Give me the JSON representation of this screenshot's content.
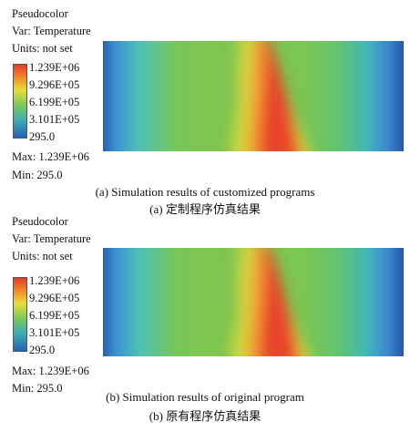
{
  "panels": [
    {
      "legend": {
        "plot_type": "Pseudocolor",
        "variable": "Var: Temperature",
        "units": "Units: not set",
        "ticks": [
          "1.239E+06",
          "9.296E+05",
          "6.199E+05",
          "3.101E+05",
          "295.0"
        ],
        "max": "Max: 1.239E+06",
        "min": "Min: 295.0"
      },
      "caption_en": "(a) Simulation results of customized programs",
      "caption_zh": "(a) 定制程序仿真结果"
    },
    {
      "legend": {
        "plot_type": "Pseudocolor",
        "variable": "Var: Temperature",
        "units": "Units: not set",
        "ticks": [
          "1.239E+06",
          "9.296E+05",
          "6.199E+05",
          "3.101E+05",
          "295.0"
        ],
        "max": "Max: 1.239E+06",
        "min": "Min: 295.0"
      },
      "caption_en": "(b) Simulation results of original program",
      "caption_zh": "(b) 原有程序仿真结果"
    }
  ],
  "colormap": [
    "#e53a25",
    "#f08b2a",
    "#e9dd3c",
    "#7cc95a",
    "#3fb0b0",
    "#2461b5"
  ]
}
